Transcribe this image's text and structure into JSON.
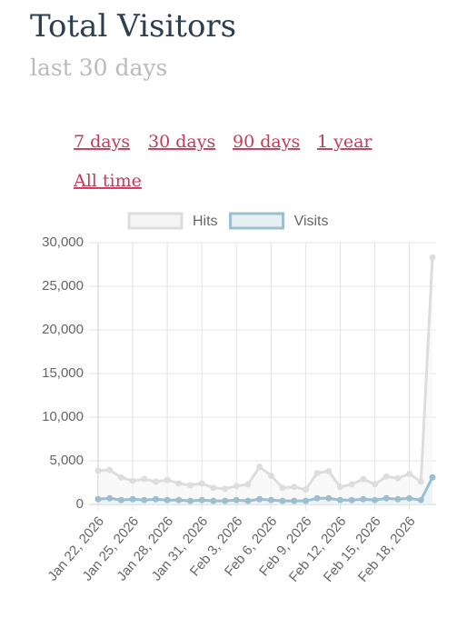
{
  "header": {
    "title": "Total Visitors",
    "subtitle": "last 30 days"
  },
  "links": [
    "7 days",
    "30 days",
    "90 days",
    "1 year",
    "All time"
  ],
  "chart_data": {
    "type": "line",
    "categories": [
      "Jan 22, 2026",
      null,
      null,
      "Jan 25, 2026",
      null,
      null,
      "Jan 28, 2026",
      null,
      null,
      "Jan 31, 2026",
      null,
      null,
      "Feb 3, 2026",
      null,
      null,
      "Feb 6, 2026",
      null,
      null,
      "Feb 9, 2026",
      null,
      null,
      "Feb 12, 2026",
      null,
      null,
      "Feb 15, 2026",
      null,
      null,
      "Feb 18, 2026",
      null,
      null
    ],
    "series": [
      {
        "name": "Hits",
        "color": "#dddddd",
        "fill": "#f5f5f5",
        "values": [
          3850,
          3950,
          3100,
          2700,
          2900,
          2600,
          2800,
          2400,
          2200,
          2400,
          1900,
          1800,
          2100,
          2300,
          4300,
          3300,
          1900,
          2000,
          1700,
          3600,
          3800,
          2000,
          2300,
          2900,
          2300,
          3200,
          3000,
          3500,
          2600,
          28300
        ]
      },
      {
        "name": "Visits",
        "color": "#9bbfcf",
        "fill": "#e6eff3",
        "values": [
          600,
          700,
          500,
          600,
          500,
          600,
          500,
          500,
          400,
          500,
          400,
          400,
          500,
          400,
          600,
          500,
          400,
          400,
          400,
          700,
          700,
          500,
          500,
          600,
          500,
          700,
          600,
          700,
          500,
          3100
        ]
      }
    ],
    "ylim": [
      0,
      30000
    ],
    "yticks": [
      0,
      {
        "value": 5000,
        "label": "5,000"
      },
      {
        "value": 10000,
        "label": "10,000"
      },
      {
        "value": 15000,
        "label": "15,000"
      },
      {
        "value": 20000,
        "label": "20,000"
      },
      {
        "value": 25000,
        "label": "25,000"
      },
      {
        "value": 30000,
        "label": "30,000"
      }
    ],
    "grid": true,
    "legend": "top"
  }
}
